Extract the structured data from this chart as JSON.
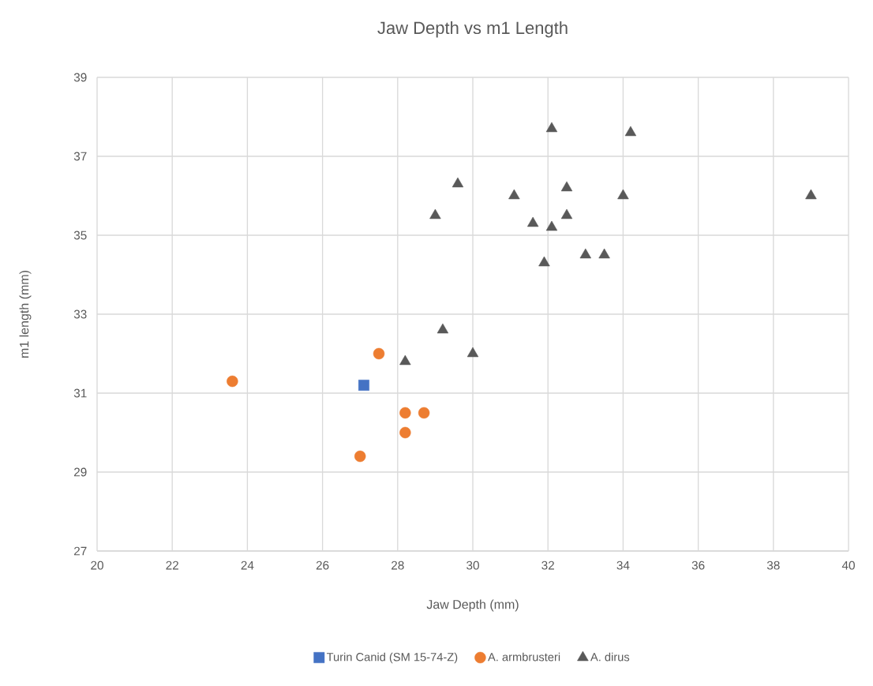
{
  "chart_data": {
    "type": "scatter",
    "title": "Jaw Depth vs m1 Length",
    "xlabel": "Jaw Depth (mm)",
    "ylabel": "m1 length (mm)",
    "xlim": [
      20,
      40
    ],
    "xticks": [
      20,
      22,
      24,
      26,
      28,
      30,
      32,
      34,
      36,
      38,
      40
    ],
    "ylim": [
      27,
      39
    ],
    "yticks": [
      27,
      29,
      31,
      33,
      35,
      37,
      39
    ],
    "grid": true,
    "legend": "bottom",
    "series": [
      {
        "name": "Turin Canid (SM 15-74-Z)",
        "color": "#4472c4",
        "marker": "square",
        "x": [
          27.1
        ],
        "values": [
          31.2
        ]
      },
      {
        "name": "A. armbrusteri",
        "color": "#ed7d31",
        "marker": "circle",
        "x": [
          23.6,
          27.5,
          28.2,
          28.7,
          28.2,
          27.0
        ],
        "values": [
          31.3,
          32.0,
          30.5,
          30.5,
          30.0,
          29.4
        ]
      },
      {
        "name": "A. dirus",
        "color": "#595959",
        "marker": "triangle",
        "x": [
          28.2,
          30.0,
          29.2,
          32.1,
          34.2,
          29.6,
          29.0,
          31.1,
          32.5,
          34.0,
          39.0,
          31.6,
          32.5,
          32.1,
          33.0,
          33.5,
          31.9
        ],
        "values": [
          31.8,
          32.0,
          32.6,
          37.7,
          37.6,
          36.3,
          35.5,
          36.0,
          36.2,
          36.0,
          36.0,
          35.3,
          35.5,
          35.2,
          34.5,
          34.5,
          34.3
        ]
      }
    ]
  }
}
